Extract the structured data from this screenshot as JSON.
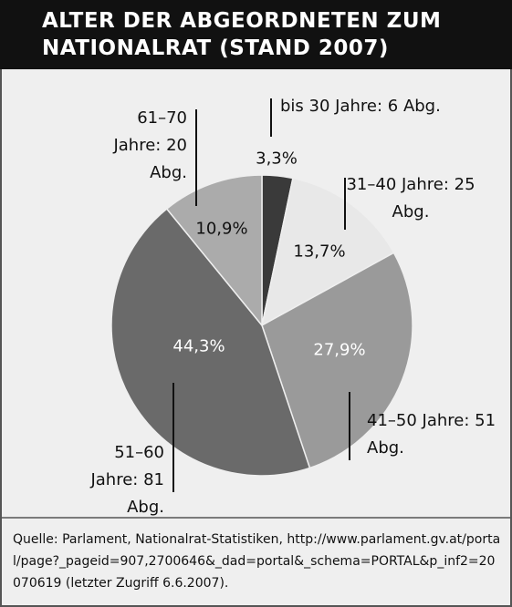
{
  "chart_data": {
    "type": "pie",
    "title": "ALTER DER ABGEORDNETEN ZUM NATIONALRAT (STAND 2007)",
    "categories": [
      "bis 30 Jahre: 6 Abg.",
      "31–40 Jahre: 25 Abg.",
      "41–50 Jahre: 51 Abg.",
      "51–60 Jahre: 81 Abg.",
      "61–70 Jahre: 20 Abg."
    ],
    "values": [
      3.3,
      13.7,
      27.9,
      44.3,
      10.9
    ],
    "value_labels": [
      "3,3%",
      "13,7%",
      "27,9%",
      "44,3%",
      "10,9%"
    ],
    "colors": [
      "#3a3a3a",
      "#e8e8e8",
      "#9a9a9a",
      "#6a6a6a",
      "#ababab"
    ],
    "source": "Quelle: Parlament, Nationalrat-Statistiken, http://www.parlament.gv.at/portal/page?_pageid=907,2700646&_dad=portal&_schema=PORTAL&p_inf2=20070619 (letzter Zugriff 6.6.2007)."
  }
}
